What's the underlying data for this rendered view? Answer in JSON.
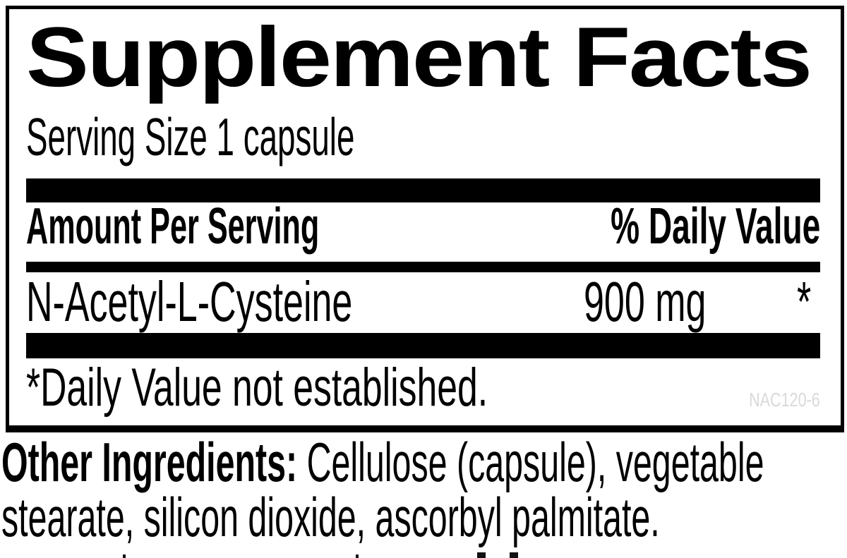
{
  "label": {
    "title": "Supplement Facts",
    "serving_size": "Serving Size 1 capsule",
    "columns": {
      "amount": "Amount Per Serving",
      "daily_value": "% Daily Value"
    },
    "rows": [
      {
        "name": "N-Acetyl-L-Cysteine",
        "amount": "900 mg",
        "daily_value": "*"
      }
    ],
    "footnote": "*Daily Value not established.",
    "product_code": "NAC120-6"
  },
  "other_ingredients": {
    "label": "Other Ingredients:",
    "line1_rest": " Cellulose (capsule), vegetable",
    "line2": "stearate, silicon dioxide, ascorbyl palmitate."
  },
  "colors": {
    "text": "#000000",
    "bars": "#000000",
    "background": "#ffffff",
    "product_code": "#d9d9d9"
  }
}
